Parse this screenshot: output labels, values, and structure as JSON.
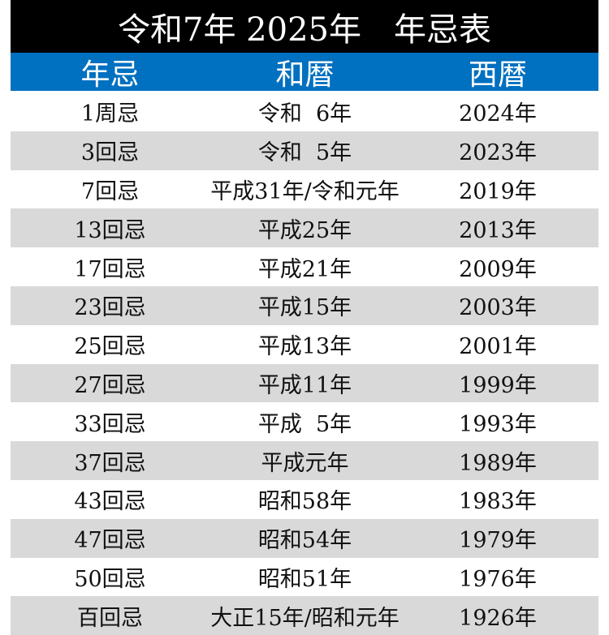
{
  "title": "令和7年 2025年　年忌表",
  "headers": {
    "nenki": "年忌",
    "wareki": "和暦",
    "seireki": "西暦"
  },
  "colors": {
    "title_bg": "#000000",
    "header_bg": "#0070c0",
    "shaded_row": "#d9d9d9"
  },
  "rows": [
    {
      "nenki": "1周忌",
      "wareki": "令和  6年",
      "seireki": "2024年"
    },
    {
      "nenki": "3回忌",
      "wareki": "令和  5年",
      "seireki": "2023年"
    },
    {
      "nenki": "7回忌",
      "wareki": "平成31年/令和元年",
      "seireki": "2019年"
    },
    {
      "nenki": "13回忌",
      "wareki": "平成25年",
      "seireki": "2013年"
    },
    {
      "nenki": "17回忌",
      "wareki": "平成21年",
      "seireki": "2009年"
    },
    {
      "nenki": "23回忌",
      "wareki": "平成15年",
      "seireki": "2003年"
    },
    {
      "nenki": "25回忌",
      "wareki": "平成13年",
      "seireki": "2001年"
    },
    {
      "nenki": "27回忌",
      "wareki": "平成11年",
      "seireki": "1999年"
    },
    {
      "nenki": "33回忌",
      "wareki": "平成  5年",
      "seireki": "1993年"
    },
    {
      "nenki": "37回忌",
      "wareki": "平成元年",
      "seireki": "1989年"
    },
    {
      "nenki": "43回忌",
      "wareki": "昭和58年",
      "seireki": "1983年"
    },
    {
      "nenki": "47回忌",
      "wareki": "昭和54年",
      "seireki": "1979年"
    },
    {
      "nenki": "50回忌",
      "wareki": "昭和51年",
      "seireki": "1976年"
    },
    {
      "nenki": "百回忌",
      "wareki": "大正15年/昭和元年",
      "seireki": "1926年"
    }
  ]
}
